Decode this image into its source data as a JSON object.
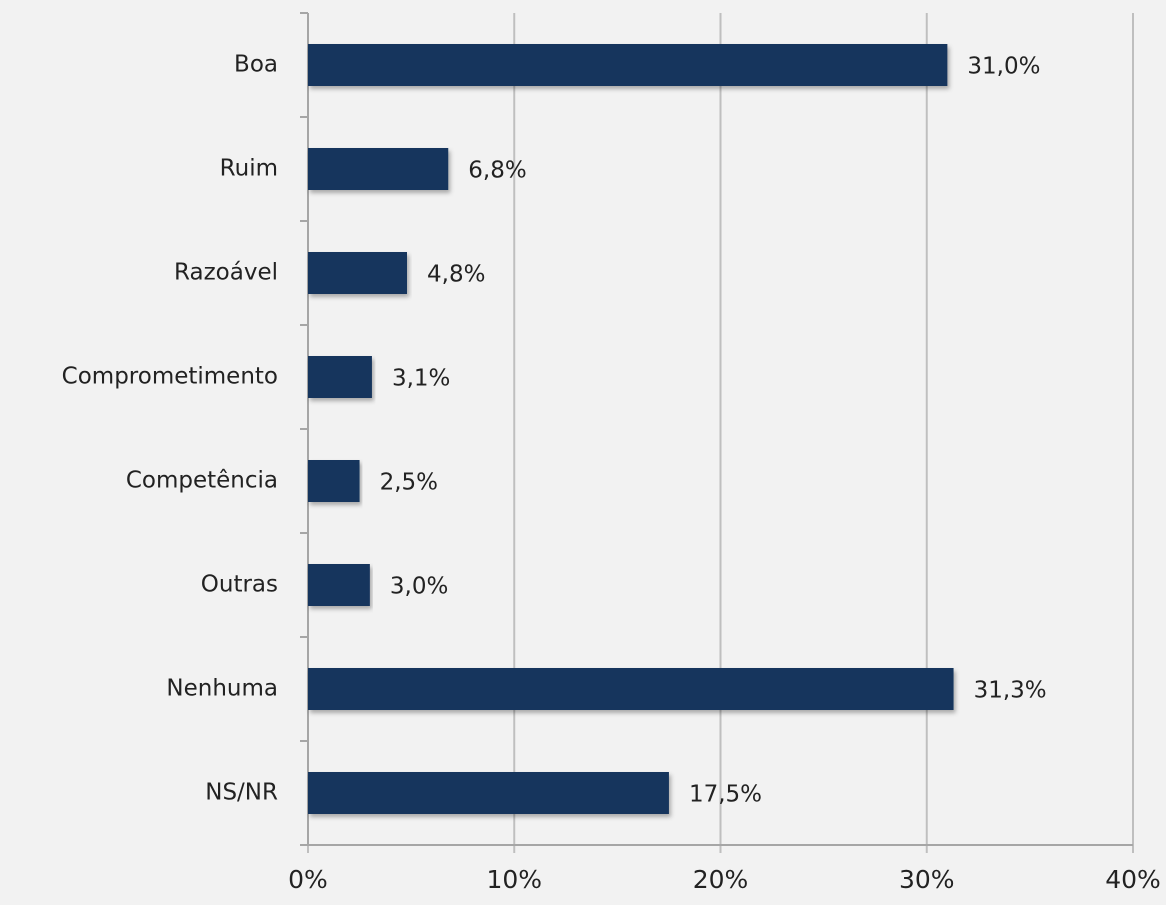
{
  "chart_data": {
    "type": "bar",
    "categories": [
      "Boa",
      "Ruim",
      "Razoável",
      "Comprometimento",
      "Competência",
      "Outras",
      "Nenhuma",
      "NS/NR"
    ],
    "values": [
      31.0,
      6.8,
      4.8,
      3.1,
      2.5,
      3.0,
      31.3,
      17.5
    ],
    "value_labels": [
      "31,0%",
      "6,8%",
      "4,8%",
      "3,1%",
      "2,5%",
      "3,0%",
      "31,3%",
      "17,5%"
    ],
    "color": "#17365d",
    "xlim": [
      0,
      40
    ],
    "xticks": [
      {
        "value": 0,
        "label": "0%"
      },
      {
        "value": 10,
        "label": "10%"
      },
      {
        "value": 20,
        "label": "20%"
      },
      {
        "value": 30,
        "label": "30%"
      },
      {
        "value": 40,
        "label": "40%"
      }
    ],
    "grid": true
  }
}
